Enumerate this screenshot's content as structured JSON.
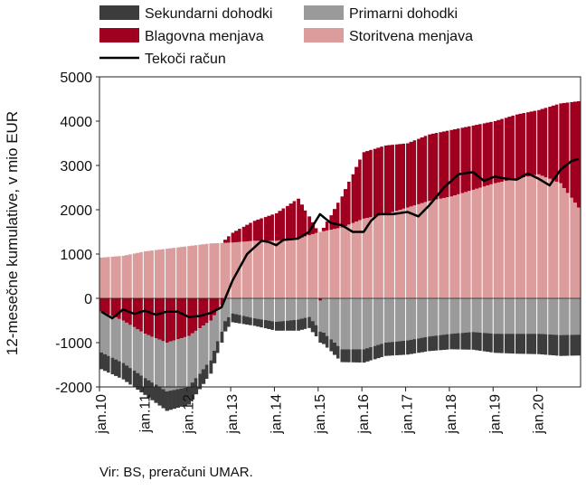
{
  "chart_data": {
    "type": "bar",
    "stacked": true,
    "ylabel": "12-mesečne kumulative, v mio EUR",
    "ylim": [
      -2000,
      5000
    ],
    "yticks": [
      -2000,
      -1000,
      0,
      1000,
      2000,
      3000,
      4000,
      5000
    ],
    "xticks": [
      "jan.10",
      "jan.11",
      "jan.12",
      "jan.13",
      "jan.14",
      "jan.15",
      "jan.16",
      "jan.17",
      "jan.18",
      "jan.19",
      "jan.20"
    ],
    "months_per_year": 12,
    "legend_position": "top",
    "source": "Vir: BS, preračuni UMAR.",
    "colors": {
      "sekundarni": "#3c3c3c",
      "primarni": "#9a9a9a",
      "blagovna": "#a0001f",
      "storitvena": "#dc9c9c",
      "tekoci": "#000000",
      "axis": "#222222"
    },
    "series": [
      {
        "key": "sekundarni",
        "name": "Sekundarni dohodki",
        "kind": "bar",
        "anchors": [
          [
            0,
            -380
          ],
          [
            6,
            -370
          ],
          [
            12,
            -380
          ],
          [
            18,
            -440
          ],
          [
            24,
            -400
          ],
          [
            30,
            -300
          ],
          [
            33,
            -250
          ],
          [
            36,
            -200
          ],
          [
            42,
            -170
          ],
          [
            48,
            -200
          ],
          [
            54,
            -250
          ],
          [
            60,
            -250
          ],
          [
            66,
            -290
          ],
          [
            72,
            -300
          ],
          [
            78,
            -300
          ],
          [
            84,
            -320
          ],
          [
            90,
            -330
          ],
          [
            96,
            -350
          ],
          [
            102,
            -400
          ],
          [
            108,
            -430
          ],
          [
            114,
            -450
          ],
          [
            120,
            -460
          ],
          [
            126,
            -470
          ],
          [
            131,
            -470
          ]
        ]
      },
      {
        "key": "primarni",
        "name": "Primarni dohodki",
        "kind": "bar",
        "anchors": [
          [
            0,
            -920
          ],
          [
            6,
            -960
          ],
          [
            12,
            -1000
          ],
          [
            18,
            -1100
          ],
          [
            24,
            -1150
          ],
          [
            30,
            -900
          ],
          [
            33,
            -600
          ],
          [
            36,
            -340
          ],
          [
            42,
            -450
          ],
          [
            48,
            -530
          ],
          [
            54,
            -480
          ],
          [
            57,
            -420
          ],
          [
            60,
            -700
          ],
          [
            66,
            -1150
          ],
          [
            72,
            -1150
          ],
          [
            78,
            -1000
          ],
          [
            84,
            -950
          ],
          [
            90,
            -860
          ],
          [
            96,
            -800
          ],
          [
            102,
            -760
          ],
          [
            108,
            -800
          ],
          [
            114,
            -800
          ],
          [
            120,
            -800
          ],
          [
            126,
            -830
          ],
          [
            131,
            -820
          ]
        ]
      },
      {
        "key": "blagovna",
        "name": "Blagovna menjava",
        "kind": "bar",
        "anchors": [
          [
            0,
            -300
          ],
          [
            6,
            -500
          ],
          [
            12,
            -800
          ],
          [
            18,
            -1000
          ],
          [
            24,
            -850
          ],
          [
            30,
            -500
          ],
          [
            33,
            -150
          ],
          [
            34,
            70
          ],
          [
            36,
            220
          ],
          [
            42,
            450
          ],
          [
            48,
            620
          ],
          [
            54,
            900
          ],
          [
            60,
            -50
          ],
          [
            66,
            700
          ],
          [
            72,
            1500
          ],
          [
            78,
            1550
          ],
          [
            84,
            1450
          ],
          [
            90,
            1500
          ],
          [
            96,
            1500
          ],
          [
            102,
            1450
          ],
          [
            108,
            1400
          ],
          [
            114,
            1450
          ],
          [
            120,
            1450
          ],
          [
            126,
            1800
          ],
          [
            131,
            2400
          ]
        ]
      },
      {
        "key": "storitvena",
        "name": "Storitvena menjava",
        "kind": "bar",
        "anchors": [
          [
            0,
            920
          ],
          [
            6,
            960
          ],
          [
            12,
            1060
          ],
          [
            18,
            1120
          ],
          [
            24,
            1180
          ],
          [
            30,
            1240
          ],
          [
            33,
            1250
          ],
          [
            36,
            1260
          ],
          [
            42,
            1300
          ],
          [
            48,
            1300
          ],
          [
            54,
            1350
          ],
          [
            60,
            1500
          ],
          [
            66,
            1600
          ],
          [
            72,
            1800
          ],
          [
            78,
            1900
          ],
          [
            84,
            2050
          ],
          [
            90,
            2200
          ],
          [
            96,
            2300
          ],
          [
            102,
            2450
          ],
          [
            108,
            2600
          ],
          [
            114,
            2700
          ],
          [
            120,
            2800
          ],
          [
            126,
            2600
          ],
          [
            131,
            2050
          ]
        ]
      },
      {
        "key": "tekoci",
        "name": "Tekoči račun",
        "kind": "line",
        "anchors": [
          [
            0,
            -300
          ],
          [
            3,
            -450
          ],
          [
            6,
            -250
          ],
          [
            9,
            -350
          ],
          [
            12,
            -280
          ],
          [
            15,
            -370
          ],
          [
            18,
            -300
          ],
          [
            21,
            -300
          ],
          [
            24,
            -420
          ],
          [
            27,
            -400
          ],
          [
            30,
            -330
          ],
          [
            33,
            -200
          ],
          [
            36,
            400
          ],
          [
            40,
            1000
          ],
          [
            44,
            1300
          ],
          [
            46,
            1270
          ],
          [
            48,
            1200
          ],
          [
            50,
            1320
          ],
          [
            54,
            1350
          ],
          [
            57,
            1500
          ],
          [
            60,
            1900
          ],
          [
            63,
            1700
          ],
          [
            66,
            1650
          ],
          [
            69,
            1500
          ],
          [
            72,
            1500
          ],
          [
            74,
            1750
          ],
          [
            76,
            1900
          ],
          [
            80,
            1900
          ],
          [
            84,
            1950
          ],
          [
            87,
            1850
          ],
          [
            90,
            2100
          ],
          [
            94,
            2500
          ],
          [
            98,
            2800
          ],
          [
            102,
            2850
          ],
          [
            105,
            2650
          ],
          [
            108,
            2750
          ],
          [
            111,
            2700
          ],
          [
            114,
            2680
          ],
          [
            117,
            2820
          ],
          [
            120,
            2700
          ],
          [
            123,
            2550
          ],
          [
            126,
            2900
          ],
          [
            129,
            3100
          ],
          [
            131,
            3150
          ]
        ]
      }
    ]
  },
  "source_text": "Vir: BS, preračuni UMAR."
}
